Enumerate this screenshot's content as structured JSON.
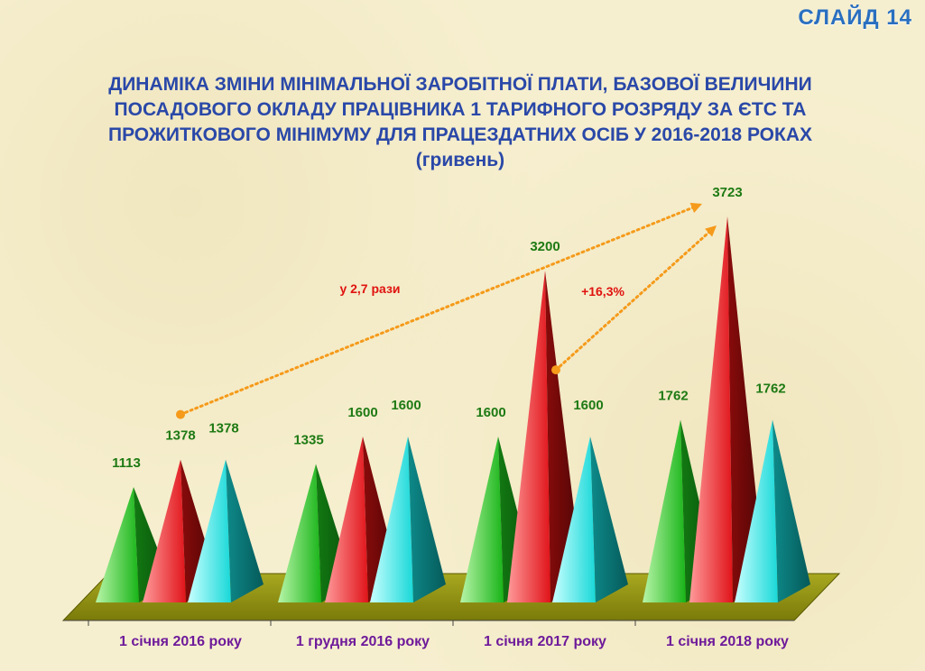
{
  "slide_label": "СЛАЙД 14",
  "chart_data": {
    "type": "bar",
    "title": "ДИНАМІКА ЗМІНИ МІНІМАЛЬНОЇ ЗАРОБІТНОЇ ПЛАТИ, БАЗОВОЇ ВЕЛИЧИНИ ПОСАДОВОГО ОКЛАДУ ПРАЦІВНИКА 1 ТАРИФНОГО РОЗРЯДУ ЗА ЄТС ТА ПРОЖИТКОВОГО МІНІМУМУ ДЛЯ ПРАЦЕЗДАТНИХ ОСІБ У 2016-2018 РОКАХ",
    "title_unit": "(гривень)",
    "categories": [
      "1 січня 2016 року",
      "1 грудня 2016 року",
      "1 січня 2017 року",
      "1 січня 2018 року"
    ],
    "series": [
      {
        "values": [
          1113,
          1335,
          1600,
          1762
        ],
        "color": "#1fbf1f"
      },
      {
        "values": [
          1378,
          1600,
          3200,
          3723
        ],
        "color": "#e0141a"
      },
      {
        "values": [
          1378,
          1600,
          1600,
          1762
        ],
        "color": "#19d8d8"
      }
    ],
    "annotations": [
      {
        "text": "у 2,7 рази"
      },
      {
        "text": "+16,3%"
      }
    ],
    "ylim": [
      0,
      3723
    ],
    "grid": false,
    "legend": "none"
  }
}
